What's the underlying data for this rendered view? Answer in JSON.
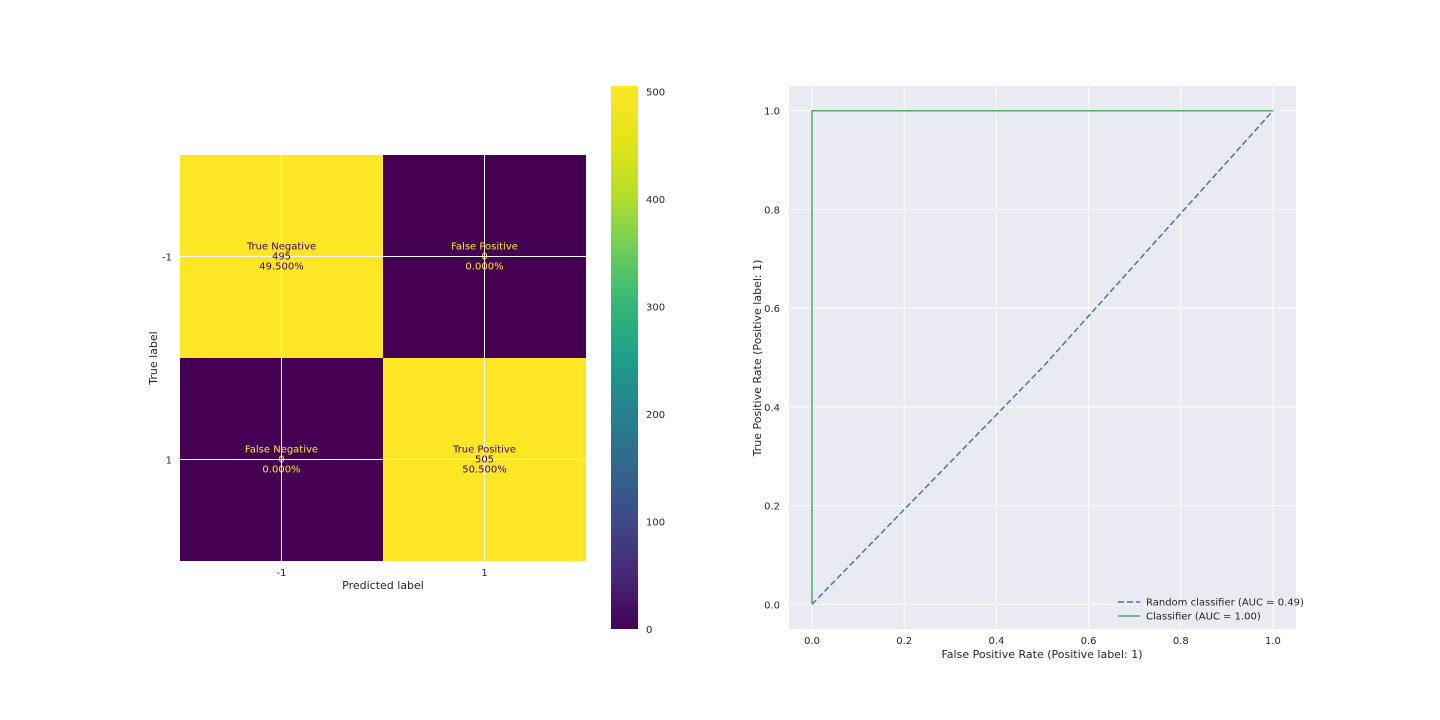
{
  "chart_data": [
    {
      "type": "heatmap",
      "xlabel": "Predicted label",
      "ylabel": "True label",
      "x_tick_labels": [
        "-1",
        "1"
      ],
      "y_tick_labels": [
        "-1",
        "1"
      ],
      "matrix": [
        [
          495,
          0
        ],
        [
          0,
          505
        ]
      ],
      "cell_labels": [
        [
          {
            "name": "True Negative",
            "count": "495",
            "percent": "49.500%"
          },
          {
            "name": "False Positive",
            "count": "0",
            "percent": "0.000%"
          }
        ],
        [
          {
            "name": "False Negative",
            "count": "0",
            "percent": "0.000%"
          },
          {
            "name": "True Positive",
            "count": "505",
            "percent": "50.500%"
          }
        ]
      ],
      "colormap": "viridis",
      "colorbar": {
        "vmin": 0,
        "vmax": 505,
        "ticks": [
          0,
          100,
          200,
          300,
          400,
          500
        ],
        "tick_labels": [
          "0",
          "100",
          "200",
          "300",
          "400",
          "500"
        ]
      },
      "colors": {
        "low": "#440154",
        "high": "#fde725",
        "text_on_low": "#fde725",
        "text_on_high": "#440154"
      },
      "grid": true
    },
    {
      "type": "line",
      "xlabel": "False Positive Rate (Positive label: 1)",
      "ylabel": "True Positive Rate (Positive label: 1)",
      "xlim": [
        -0.05,
        1.05
      ],
      "ylim": [
        -0.05,
        1.05
      ],
      "x_ticks": [
        0.0,
        0.2,
        0.4,
        0.6,
        0.8,
        1.0
      ],
      "x_tick_labels": [
        "0.0",
        "0.2",
        "0.4",
        "0.6",
        "0.8",
        "1.0"
      ],
      "y_ticks": [
        0.0,
        0.2,
        0.4,
        0.6,
        0.8,
        1.0
      ],
      "y_tick_labels": [
        "0.0",
        "0.2",
        "0.4",
        "0.6",
        "0.8",
        "1.0"
      ],
      "grid": true,
      "legend_position": "lower-right",
      "series": [
        {
          "name": "Random classifier (AUC = 0.49)",
          "style": "dashed",
          "color": "#4c72b0",
          "x": [
            0,
            0.5,
            1
          ],
          "y": [
            0,
            0.48,
            1
          ]
        },
        {
          "name": "Classifier (AUC = 1.00)",
          "style": "solid",
          "color": "#55a868",
          "x": [
            0,
            0,
            1
          ],
          "y": [
            0,
            1,
            1
          ]
        }
      ]
    }
  ]
}
